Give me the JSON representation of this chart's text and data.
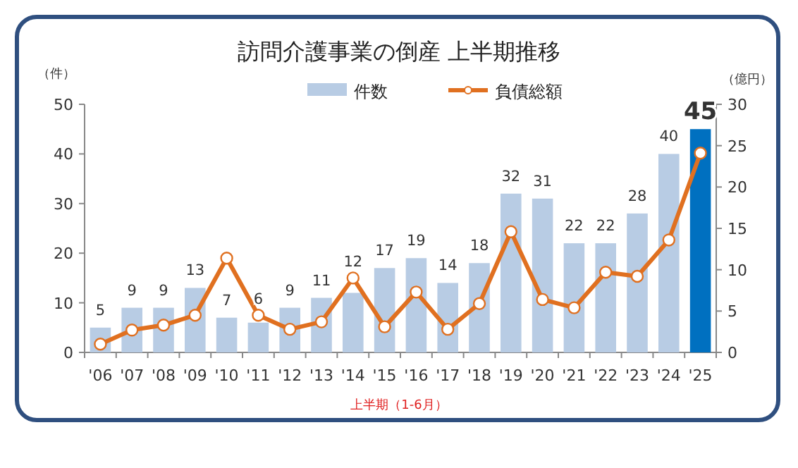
{
  "chart_data": {
    "type": "bar",
    "title": "訪問介護事業の倒産 上半期推移",
    "ylabel": "（件）",
    "y2label": "（億円）",
    "categories": [
      "'06",
      "'07",
      "'08",
      "'09",
      "'10",
      "'11",
      "'12",
      "'13",
      "'14",
      "'15",
      "'16",
      "'17",
      "'18",
      "'19",
      "'20",
      "'21",
      "'22",
      "'23",
      "'24",
      "'25"
    ],
    "series": [
      {
        "name": "件数",
        "color": "#b8cce4",
        "colors": [
          "#b8cce4",
          "#b8cce4",
          "#b8cce4",
          "#b8cce4",
          "#b8cce4",
          "#b8cce4",
          "#b8cce4",
          "#b8cce4",
          "#b8cce4",
          "#b8cce4",
          "#b8cce4",
          "#b8cce4",
          "#b8cce4",
          "#b8cce4",
          "#b8cce4",
          "#b8cce4",
          "#b8cce4",
          "#b8cce4",
          "#b8cce4",
          "#0070c0"
        ],
        "values": [
          5,
          9,
          9,
          13,
          7,
          6,
          9,
          11,
          12,
          17,
          19,
          14,
          18,
          32,
          31,
          22,
          22,
          28,
          40,
          45
        ],
        "value_labels": [
          "5",
          "9",
          "9",
          "13",
          "7",
          "6",
          "9",
          "11",
          "12",
          "17",
          "19",
          "14",
          "18",
          "32",
          "31",
          "22",
          "22",
          "28",
          "40",
          "45"
        ]
      },
      {
        "name": "負債総額",
        "type": "line",
        "axis": "y2",
        "color": "#e07020",
        "marker": "circle",
        "values": [
          1.0,
          2.7,
          3.3,
          4.5,
          11.4,
          4.5,
          2.8,
          3.7,
          9.0,
          3.1,
          7.3,
          2.8,
          5.9,
          14.6,
          6.4,
          5.4,
          9.7,
          9.2,
          13.6,
          24.1
        ]
      }
    ],
    "ylim": [
      0,
      50
    ],
    "yticks": [
      0,
      10,
      20,
      30,
      40,
      50
    ],
    "y2lim": [
      0,
      30
    ],
    "y2ticks": [
      0,
      5,
      10,
      15,
      20,
      25,
      30
    ],
    "legend": "top",
    "grid": false,
    "annotations": [
      "上半期（1-6月）"
    ]
  }
}
